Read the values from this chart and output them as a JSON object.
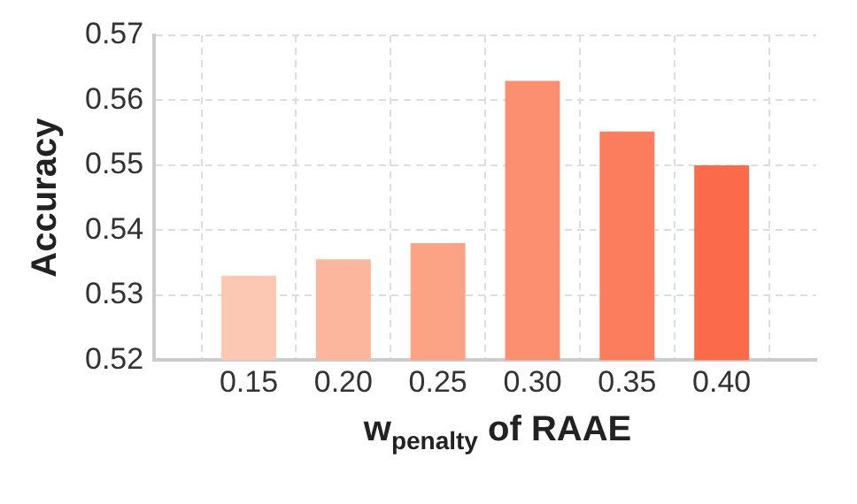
{
  "chart_data": {
    "type": "bar",
    "xlabel": "w$_{penalty}$ of RAAE",
    "ylabel": "Accuracy",
    "categories": [
      "0.15",
      "0.20",
      "0.25",
      "0.30",
      "0.35",
      "0.40"
    ],
    "values": [
      0.533,
      0.5355,
      0.538,
      0.563,
      0.5552,
      0.55
    ],
    "colors": [
      "#fcc8b3",
      "#fcb69d",
      "#fca385",
      "#fc8f70",
      "#fb7d5e",
      "#fb6a4a"
    ],
    "ylim": [
      0.52,
      0.57
    ],
    "yticks": [
      {
        "value": 0.52,
        "label": "0.52"
      },
      {
        "value": 0.53,
        "label": "0.53"
      },
      {
        "value": 0.54,
        "label": "0.54"
      },
      {
        "value": 0.55,
        "label": "0.55"
      },
      {
        "value": 0.56,
        "label": "0.56"
      },
      {
        "value": 0.57,
        "label": "0.57"
      }
    ],
    "grid": true,
    "legend": false
  }
}
